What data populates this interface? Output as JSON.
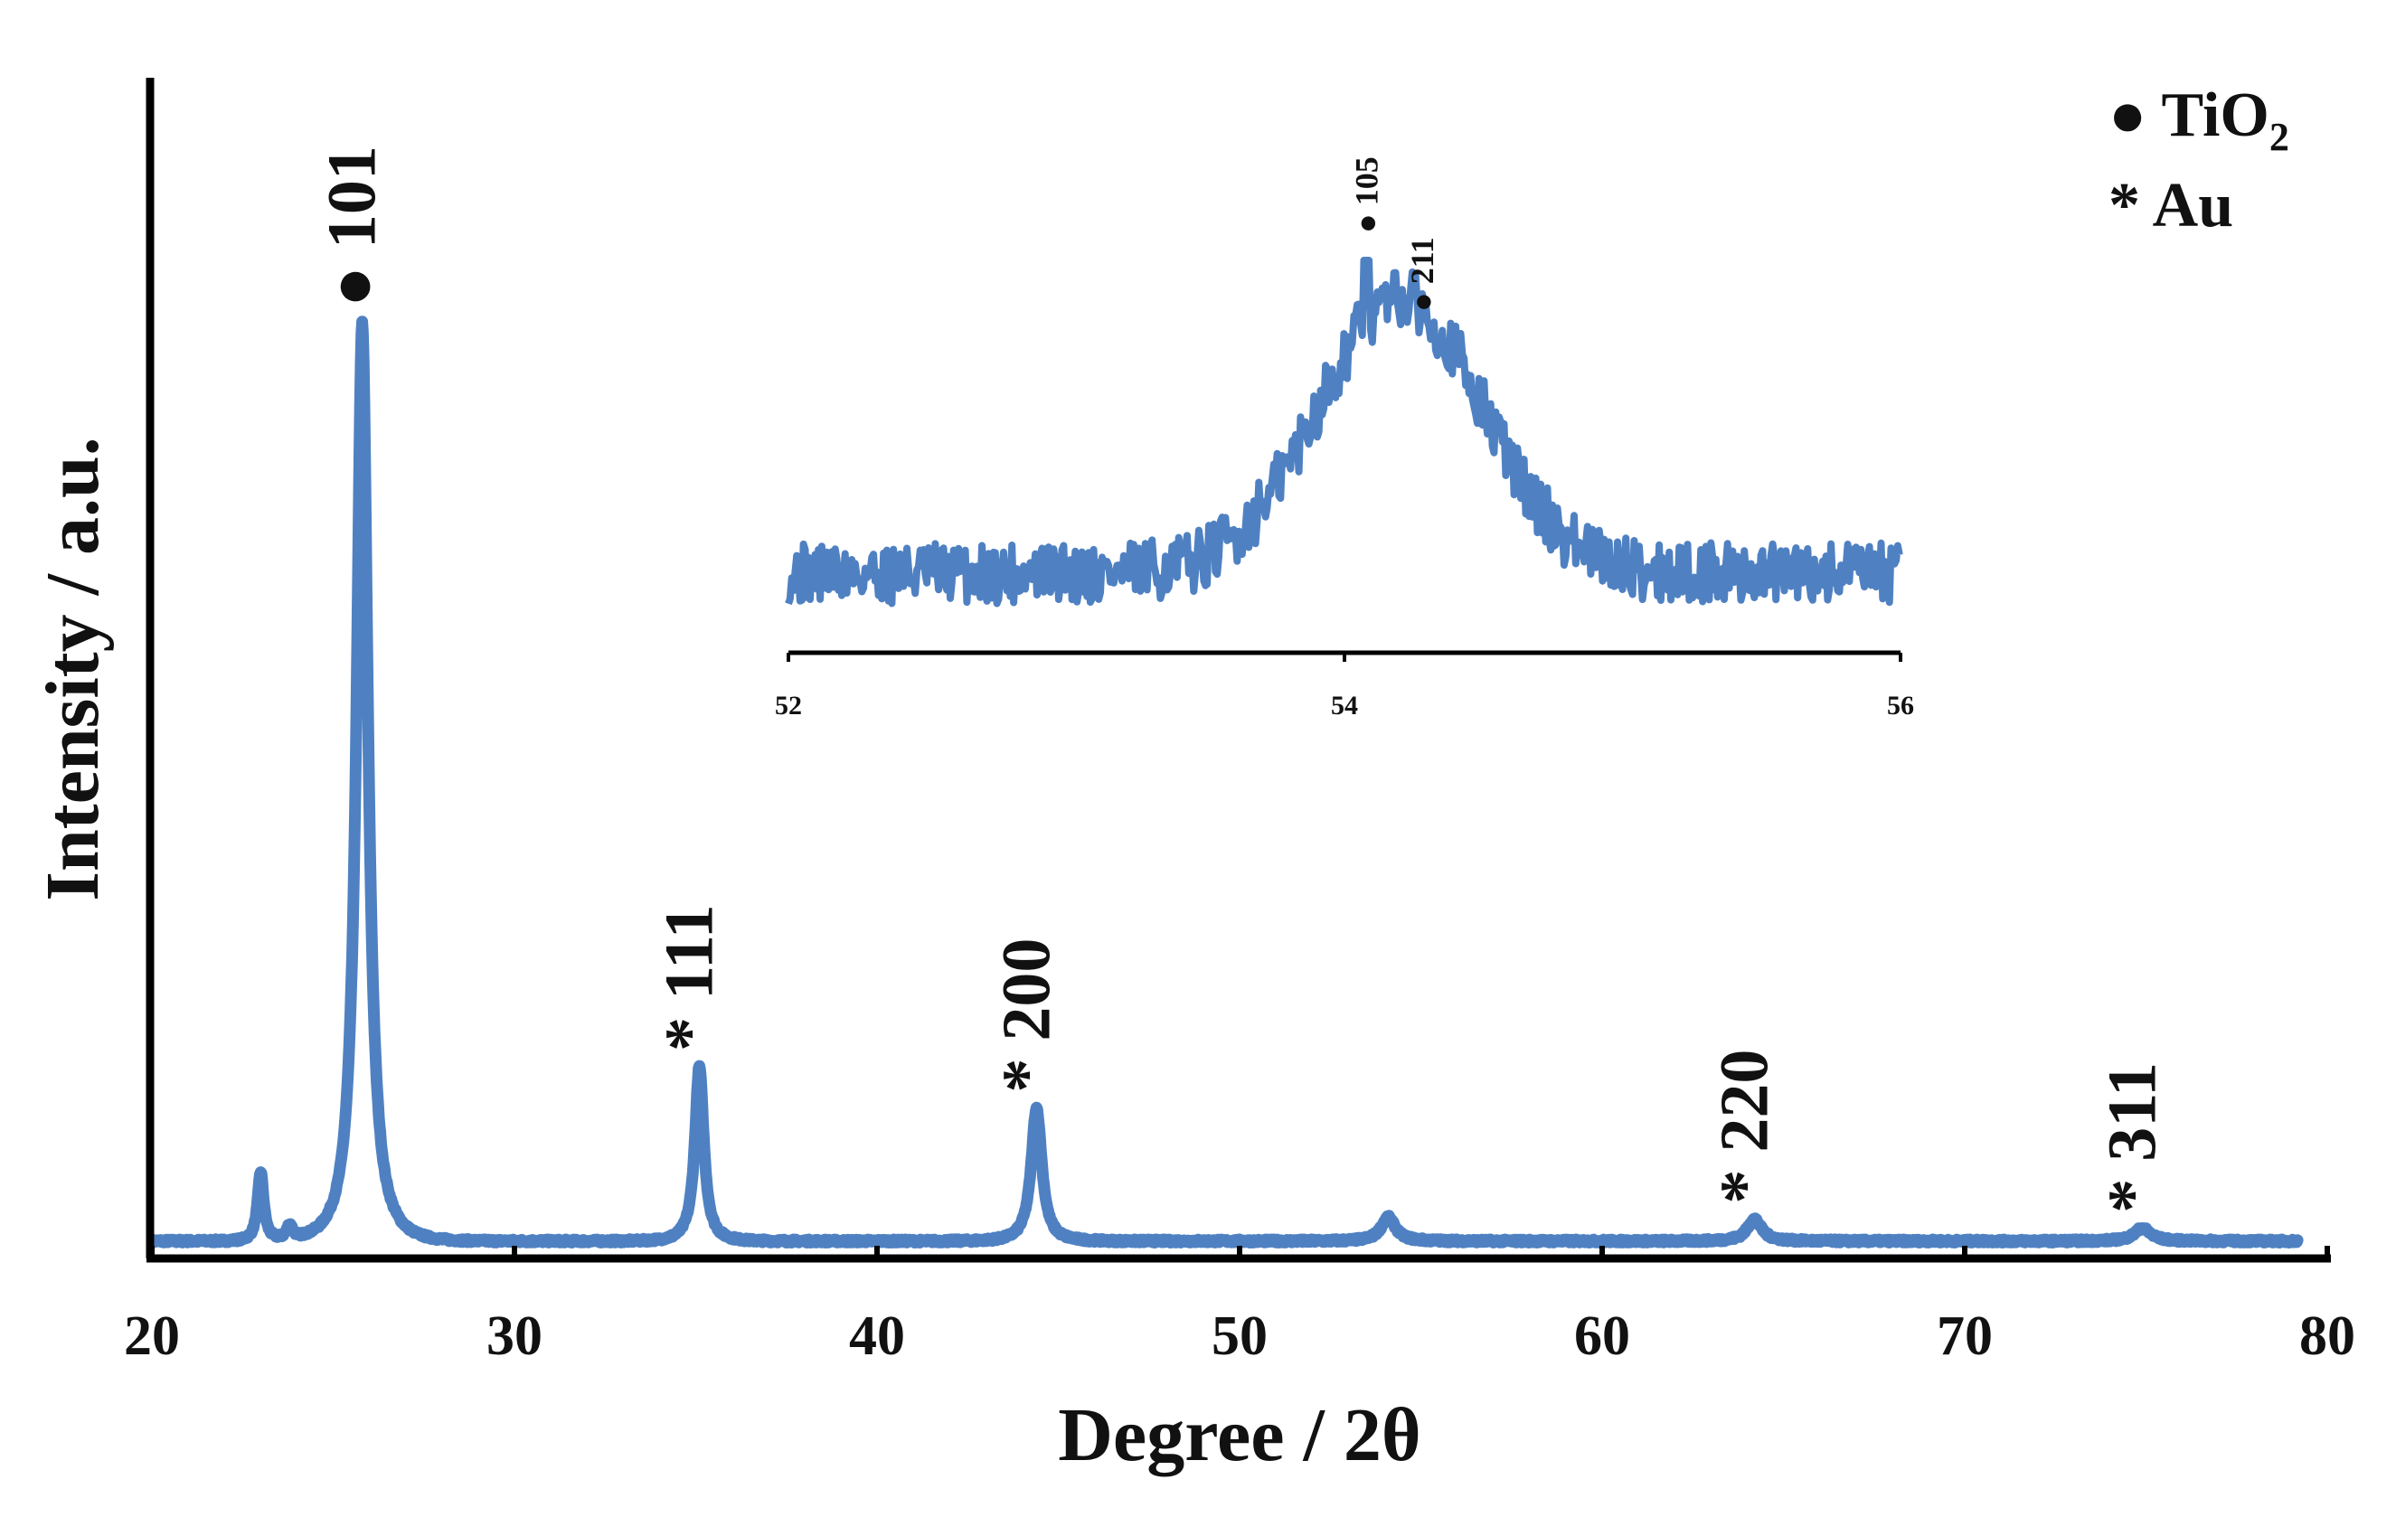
{
  "chart_data": {
    "type": "line",
    "main": {
      "xlabel": "Degree / 2θ",
      "ylabel": "Intensity / a.u.",
      "xlim": [
        20,
        80
      ],
      "ylim": [
        0,
        100
      ],
      "xticks": [
        "20",
        "30",
        "40",
        "50",
        "60",
        "70",
        "80"
      ],
      "baseline": 1.5,
      "peaks": [
        {
          "x": 23.0,
          "height": 7.5,
          "width": 0.15
        },
        {
          "x": 23.8,
          "height": 1.5,
          "width": 0.15
        },
        {
          "x": 25.8,
          "height": 100,
          "width": 0.28
        },
        {
          "x": 35.1,
          "height": 19,
          "width": 0.22
        },
        {
          "x": 44.4,
          "height": 14.5,
          "width": 0.26
        },
        {
          "x": 54.1,
          "height": 2.6,
          "width": 0.35
        },
        {
          "x": 64.2,
          "height": 2.4,
          "width": 0.35
        },
        {
          "x": 74.9,
          "height": 1.4,
          "width": 0.4
        }
      ],
      "peak_labels": [
        {
          "x": 25.8,
          "marker": "●",
          "text": "101",
          "height": 100
        },
        {
          "x": 35.1,
          "marker": "*",
          "text": "111",
          "height": 19
        },
        {
          "x": 44.4,
          "marker": "*",
          "text": "200",
          "height": 14.5
        },
        {
          "x": 64.2,
          "marker": "*",
          "text": "220",
          "height": 2.4
        },
        {
          "x": 74.9,
          "marker": "*",
          "text": "311",
          "height": 1.4
        }
      ]
    },
    "inset": {
      "xlim": [
        52,
        56
      ],
      "xticks": [
        "52",
        "54",
        "56"
      ],
      "peak_center": 54.2,
      "peak_labels": [
        {
          "x": 54.08,
          "marker": "●",
          "text": "105"
        },
        {
          "x": 54.28,
          "marker": "●",
          "text": "211"
        }
      ]
    },
    "legend": [
      {
        "marker": "●",
        "text": "TiO",
        "subscript": "2"
      },
      {
        "marker": "*",
        "text": "Au"
      }
    ],
    "line_color": "#4F81C2"
  }
}
